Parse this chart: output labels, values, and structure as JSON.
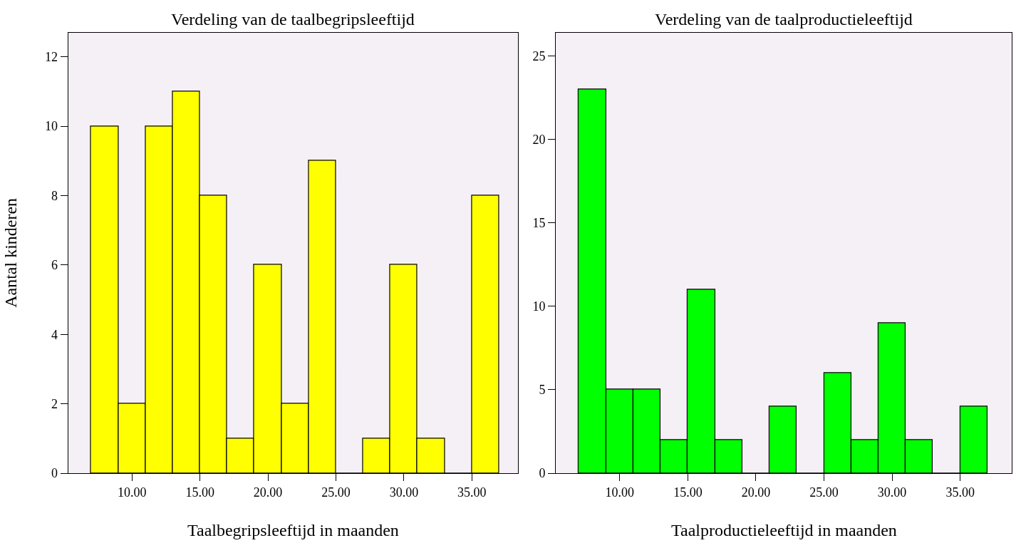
{
  "chart_data": [
    {
      "type": "histogram",
      "title": "Verdeling van de taalbegripsleeftijd",
      "xlabel": "Taalbegripsleeftijd in maanden",
      "ylabel": "Aantal kinderen",
      "color": "#ffff00",
      "bins": [
        7,
        9,
        11,
        13,
        15,
        17,
        19,
        21,
        23,
        25,
        27,
        29,
        31,
        33,
        35,
        37
      ],
      "values": [
        10,
        2,
        10,
        11,
        8,
        1,
        6,
        2,
        9,
        0,
        1,
        6,
        1,
        0,
        8
      ],
      "xlim": [
        5.3,
        38.4
      ],
      "xticks": [
        {
          "value": 10,
          "label": "10.00"
        },
        {
          "value": 15,
          "label": "15.00"
        },
        {
          "value": 20,
          "label": "20.00"
        },
        {
          "value": 25,
          "label": "25.00"
        },
        {
          "value": 30,
          "label": "30.00"
        },
        {
          "value": 35,
          "label": "35.00"
        }
      ],
      "ylim": [
        0,
        12.7
      ],
      "yticks": [
        0,
        2,
        4,
        6,
        8,
        10,
        12
      ],
      "grid": false
    },
    {
      "type": "histogram",
      "title": "Verdeling van de taalproductieleeftijd",
      "xlabel": "Taalproductieleeftijd in maanden",
      "color": "#00ff00",
      "bins": [
        7,
        9,
        11,
        13,
        15,
        17,
        19,
        21,
        23,
        25,
        27,
        29,
        31,
        33,
        35,
        37
      ],
      "values": [
        23,
        5,
        5,
        2,
        11,
        2,
        0,
        4,
        0,
        6,
        2,
        9,
        2,
        0,
        4
      ],
      "xlim": [
        5.3,
        38.8
      ],
      "xticks": [
        {
          "value": 10,
          "label": "10.00"
        },
        {
          "value": 15,
          "label": "15.00"
        },
        {
          "value": 20,
          "label": "20.00"
        },
        {
          "value": 25,
          "label": "25.00"
        },
        {
          "value": 30,
          "label": "30.00"
        },
        {
          "value": 35,
          "label": "35.00"
        }
      ],
      "ylim": [
        0,
        26.4
      ],
      "yticks": [
        0,
        5,
        10,
        15,
        20,
        25
      ],
      "grid": false
    }
  ]
}
